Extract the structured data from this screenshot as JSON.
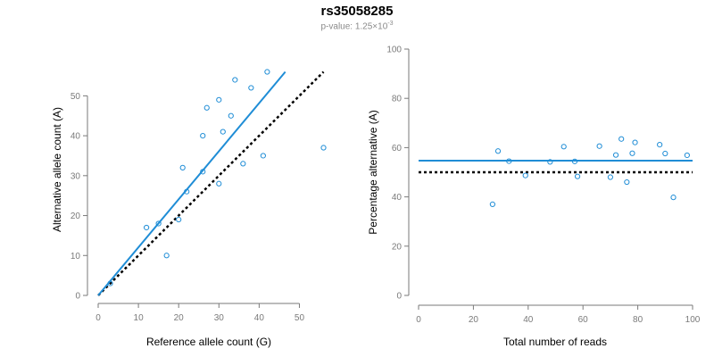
{
  "title": "rs35058285",
  "subtitle": {
    "prefix": "p-value: 1.25×10",
    "exponent": "-3"
  },
  "colors": {
    "points": "#1f8dd6",
    "fit_line": "#1f8dd6",
    "reference_line": "#000000",
    "axis": "#7a7a7a"
  },
  "chart_data": [
    {
      "type": "scatter",
      "xlabel": "Reference allele count (G)",
      "ylabel": "Alternative allele count (A)",
      "xlim": [
        0,
        55
      ],
      "ylim": [
        0,
        55
      ],
      "xticks": [
        0,
        10,
        20,
        30,
        40,
        50
      ],
      "yticks": [
        0,
        10,
        20,
        30,
        40,
        50
      ],
      "points": [
        {
          "x": 3,
          "y": 3
        },
        {
          "x": 12,
          "y": 17
        },
        {
          "x": 15,
          "y": 18
        },
        {
          "x": 17,
          "y": 10
        },
        {
          "x": 20,
          "y": 19
        },
        {
          "x": 21,
          "y": 32
        },
        {
          "x": 22,
          "y": 26
        },
        {
          "x": 26,
          "y": 40
        },
        {
          "x": 26,
          "y": 31
        },
        {
          "x": 27,
          "y": 47
        },
        {
          "x": 30,
          "y": 49
        },
        {
          "x": 30,
          "y": 28
        },
        {
          "x": 31,
          "y": 41
        },
        {
          "x": 33,
          "y": 45
        },
        {
          "x": 34,
          "y": 54
        },
        {
          "x": 36,
          "y": 33
        },
        {
          "x": 38,
          "y": 52
        },
        {
          "x": 41,
          "y": 35
        },
        {
          "x": 42,
          "y": 56
        },
        {
          "x": 56,
          "y": 37
        }
      ],
      "fit_line": {
        "x": [
          0,
          46.5
        ],
        "y": [
          0,
          56
        ]
      },
      "reference_line": {
        "x": [
          0,
          56
        ],
        "y": [
          0,
          56
        ]
      }
    },
    {
      "type": "scatter",
      "xlabel": "Total number of reads",
      "ylabel": "Percentage alternative (A)",
      "xlim": [
        0,
        100
      ],
      "ylim": [
        0,
        100
      ],
      "xticks": [
        0,
        20,
        40,
        60,
        80,
        100
      ],
      "yticks": [
        0,
        20,
        40,
        60,
        80,
        100
      ],
      "points": [
        {
          "x": 27,
          "y": 37
        },
        {
          "x": 29,
          "y": 58.6
        },
        {
          "x": 33,
          "y": 54.5
        },
        {
          "x": 39,
          "y": 48.7
        },
        {
          "x": 48,
          "y": 54.2
        },
        {
          "x": 53,
          "y": 60.4
        },
        {
          "x": 57,
          "y": 54.4
        },
        {
          "x": 58,
          "y": 48.3
        },
        {
          "x": 66,
          "y": 60.6
        },
        {
          "x": 70,
          "y": 48
        },
        {
          "x": 72,
          "y": 57
        },
        {
          "x": 74,
          "y": 63.5
        },
        {
          "x": 76,
          "y": 46
        },
        {
          "x": 78,
          "y": 57.7
        },
        {
          "x": 79,
          "y": 62.1
        },
        {
          "x": 88,
          "y": 61.2
        },
        {
          "x": 90,
          "y": 57.6
        },
        {
          "x": 93,
          "y": 39.8
        },
        {
          "x": 98,
          "y": 56.9
        }
      ],
      "fit_line": {
        "x": [
          0,
          100
        ],
        "y": [
          54.7,
          54.7
        ]
      },
      "reference_line": {
        "x": [
          0,
          100
        ],
        "y": [
          50,
          50
        ]
      }
    }
  ]
}
